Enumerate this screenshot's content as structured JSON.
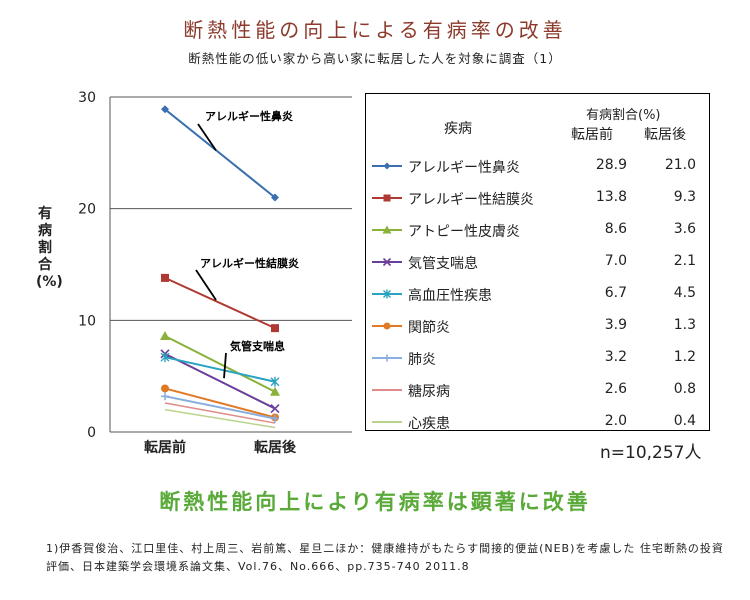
{
  "title": "断熱性能の向上による有病率の改善",
  "subtitle": "断熱性能の低い家から高い家に転居した人を対象に調査（1）",
  "conclusion": "断熱性能向上により有病率は顕著に改善",
  "sample_note": "n=10,257人",
  "reference": "1)伊香賀俊治、江口里佳、村上周三、岩前篤、星旦二ほか：健康維持がもたらす間接的便益(NEB)を考慮した 住宅断熱の投資評価、日本建築学会環境系論文集、Vol.76、No.666、pp.735-740 2011.8",
  "table": {
    "header_disease": "疾病",
    "header_ratio": "有病割合(%)",
    "header_before": "転居前",
    "header_after": "転居後"
  },
  "chart_data": {
    "type": "line",
    "categories": [
      "転居前",
      "転居後"
    ],
    "ylabel": "有病割合(%)",
    "ylim": [
      0,
      30
    ],
    "yticks": [
      0,
      10,
      20,
      30
    ],
    "grid": true,
    "series": [
      {
        "name": "アレルギー性鼻炎",
        "values": [
          28.9,
          21.0
        ],
        "color": "#3a6fb0",
        "marker": "diamond"
      },
      {
        "name": "アレルギー性結膜炎",
        "values": [
          13.8,
          9.3
        ],
        "color": "#b03a33",
        "marker": "square"
      },
      {
        "name": "アトピー性皮膚炎",
        "values": [
          8.6,
          3.6
        ],
        "color": "#8ab13a",
        "marker": "triangle"
      },
      {
        "name": "気管支喘息",
        "values": [
          7.0,
          2.1
        ],
        "color": "#6a3f9a",
        "marker": "x"
      },
      {
        "name": "高血圧性疾患",
        "values": [
          6.7,
          4.5
        ],
        "color": "#2aa3c0",
        "marker": "asterisk"
      },
      {
        "name": "関節炎",
        "values": [
          3.9,
          1.3
        ],
        "color": "#e07a25",
        "marker": "circle"
      },
      {
        "name": "肺炎",
        "values": [
          3.2,
          1.2
        ],
        "color": "#8aaee0",
        "marker": "plus"
      },
      {
        "name": "糖尿病",
        "values": [
          2.6,
          0.8
        ],
        "color": "#e08a8a",
        "marker": "none"
      },
      {
        "name": "心疾患",
        "values": [
          2.0,
          0.4
        ],
        "color": "#b9d48a",
        "marker": "none"
      }
    ],
    "annotations": [
      {
        "text": "アレルギー性鼻炎",
        "series": 0
      },
      {
        "text": "アレルギー性結膜炎",
        "series": 1
      },
      {
        "text": "気管支喘息",
        "series": 3
      }
    ]
  }
}
